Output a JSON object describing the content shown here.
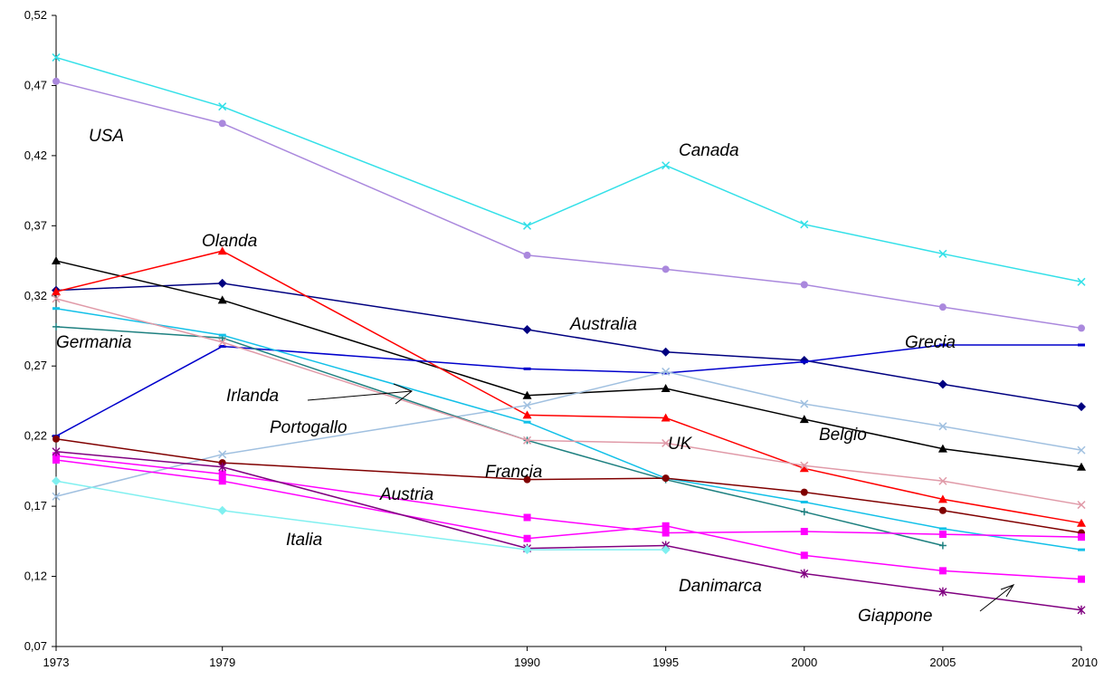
{
  "chart_data": {
    "type": "line",
    "title": "",
    "xlabel": "",
    "ylabel": "",
    "x": [
      1973,
      1979,
      1990,
      1995,
      2000,
      2005,
      2010
    ],
    "x_tick_labels": [
      "1973",
      "1979",
      "1990",
      "1995",
      "2000",
      "2005",
      "2010"
    ],
    "y_ticks": [
      0.07,
      0.12,
      0.17,
      0.22,
      0.27,
      0.32,
      0.37,
      0.42,
      0.47,
      0.52
    ],
    "y_tick_labels": [
      "0,07",
      "0,12",
      "0,17",
      "0,22",
      "0,27",
      "0,32",
      "0,37",
      "0,42",
      "0,47",
      "0,52"
    ],
    "ylim": [
      0.07,
      0.52
    ],
    "grid": false,
    "legend": "none",
    "series": [
      {
        "name": "Canada",
        "color": "#33e0e8",
        "marker": "x",
        "values": [
          0.49,
          0.455,
          0.37,
          0.413,
          0.371,
          0.35,
          0.33
        ]
      },
      {
        "name": "USA",
        "color": "#aa88dd",
        "marker": "circle",
        "values": [
          0.473,
          0.443,
          0.349,
          0.339,
          0.328,
          0.312,
          0.297
        ]
      },
      {
        "name": "Australia",
        "color": "#000080",
        "marker": "diamond",
        "values": [
          0.324,
          0.329,
          0.296,
          0.28,
          0.274,
          0.257,
          0.241
        ]
      },
      {
        "name": "Belgio",
        "color": "#000000",
        "marker": "triangle",
        "values": [
          0.345,
          0.317,
          0.249,
          0.254,
          0.232,
          0.211,
          0.198
        ]
      },
      {
        "name": "Olanda",
        "color": "#ff0000",
        "marker": "triangle",
        "values": [
          0.323,
          0.352,
          0.235,
          0.233,
          0.197,
          0.175,
          0.158
        ]
      },
      {
        "name": "Grecia",
        "color": "#0000cc",
        "marker": "dash",
        "values": [
          0.22,
          0.284,
          0.268,
          0.265,
          0.273,
          0.285,
          0.285
        ]
      },
      {
        "name": "Irlanda",
        "color": "#a0c0e0",
        "marker": "x",
        "values": [
          0.177,
          0.207,
          0.242,
          0.266,
          0.243,
          0.227,
          0.21
        ]
      },
      {
        "name": "Germania",
        "color": "#1e8080",
        "marker": "plus",
        "values": [
          0.298,
          0.29,
          0.217,
          0.189,
          0.166,
          0.142,
          null
        ]
      },
      {
        "name": "Portogallo",
        "color": "#12c0e8",
        "marker": "dash",
        "values": [
          0.311,
          0.292,
          0.23,
          0.19,
          0.173,
          0.154,
          0.139
        ]
      },
      {
        "name": "UK",
        "color": "#e09aa8",
        "marker": "x",
        "values": [
          0.318,
          0.287,
          0.217,
          0.215,
          0.199,
          0.188,
          0.171
        ]
      },
      {
        "name": "Francia",
        "color": "#800000",
        "marker": "circle",
        "values": [
          0.218,
          0.201,
          0.189,
          0.19,
          0.18,
          0.167,
          0.151
        ]
      },
      {
        "name": "Austria",
        "color": "#ff00ff",
        "marker": "square",
        "values": [
          0.206,
          0.193,
          0.162,
          0.151,
          0.152,
          0.15,
          0.148
        ]
      },
      {
        "name": "Danimarca",
        "color": "#ff00ff",
        "marker": "square",
        "values": [
          0.203,
          0.188,
          0.147,
          0.156,
          0.135,
          0.124,
          0.118
        ]
      },
      {
        "name": "Giappone",
        "color": "#800080",
        "marker": "asterisk",
        "values": [
          0.209,
          0.198,
          0.14,
          0.142,
          0.122,
          0.109,
          0.096
        ]
      },
      {
        "name": "Italia",
        "color": "#80f0f0",
        "marker": "diamond",
        "values": [
          0.188,
          0.167,
          0.139,
          0.139,
          null,
          null,
          null
        ]
      }
    ]
  }
}
